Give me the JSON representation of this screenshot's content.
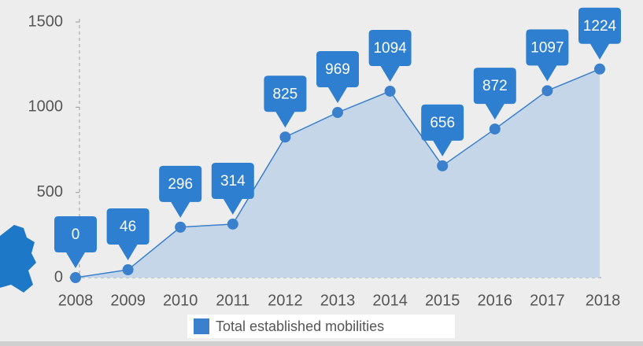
{
  "chart_data": {
    "type": "area",
    "categories": [
      "2008",
      "2009",
      "2010",
      "2011",
      "2012",
      "2013",
      "2014",
      "2015",
      "2016",
      "2017",
      "2018"
    ],
    "series": [
      {
        "name": "Total established mobilities",
        "color": "#3a80cc",
        "values": [
          0,
          46,
          296,
          314,
          825,
          969,
          1094,
          656,
          872,
          1097,
          1224
        ]
      }
    ],
    "ylim": [
      0,
      1500
    ],
    "yticks": [
      0,
      500,
      1000,
      1500
    ],
    "grid": false
  }
}
